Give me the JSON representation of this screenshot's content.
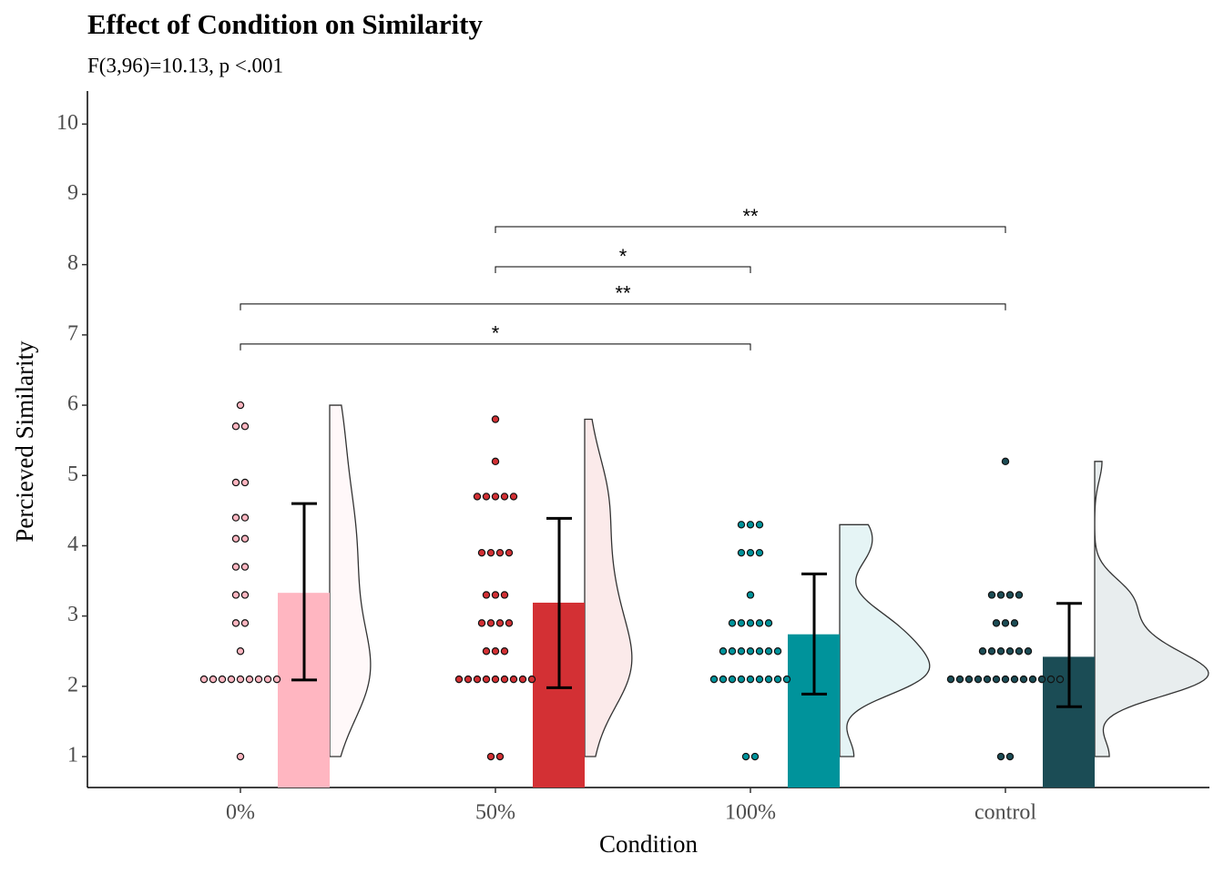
{
  "chart_data": {
    "type": "raincloud",
    "title": "Effect of Condition on Similarity",
    "subtitle": "F(3,96)=10.13, p <.001",
    "xlabel": "Condition",
    "ylabel": "Percieved Similarity",
    "categories": [
      "0%",
      "50%",
      "100%",
      "control"
    ],
    "colors": [
      "#ffb6c1",
      "#d33034",
      "#00939b",
      "#1b4c55"
    ],
    "means": [
      3.33,
      3.19,
      2.74,
      2.42
    ],
    "error_low": [
      2.09,
      1.98,
      1.89,
      1.71
    ],
    "error_high": [
      4.6,
      4.39,
      3.6,
      3.18
    ],
    "points": [
      [
        6,
        5.7,
        5.7,
        4.9,
        4.9,
        4.4,
        4.4,
        4.1,
        4.1,
        3.7,
        3.7,
        3.3,
        3.3,
        2.9,
        2.9,
        2.5,
        2.1,
        2.1,
        2.1,
        2.1,
        2.1,
        2.1,
        2.1,
        2.1,
        2.1,
        1
      ],
      [
        5.8,
        5.2,
        4.7,
        4.7,
        4.7,
        4.7,
        4.7,
        3.9,
        3.9,
        3.9,
        3.9,
        3.3,
        3.3,
        3.3,
        2.9,
        2.9,
        2.9,
        2.9,
        2.5,
        2.5,
        2.5,
        2.1,
        2.1,
        2.1,
        2.1,
        2.1,
        2.1,
        2.1,
        2.1,
        2.1,
        1,
        1
      ],
      [
        4.3,
        4.3,
        4.3,
        3.9,
        3.9,
        3.9,
        3.3,
        2.9,
        2.9,
        2.9,
        2.9,
        2.9,
        2.5,
        2.5,
        2.5,
        2.5,
        2.5,
        2.5,
        2.5,
        2.1,
        2.1,
        2.1,
        2.1,
        2.1,
        2.1,
        2.1,
        2.1,
        2.1,
        1,
        1
      ],
      [
        5.2,
        3.3,
        3.3,
        3.3,
        3.3,
        2.9,
        2.9,
        2.9,
        2.5,
        2.5,
        2.5,
        2.5,
        2.5,
        2.5,
        2.1,
        2.1,
        2.1,
        2.1,
        2.1,
        2.1,
        2.1,
        2.1,
        2.1,
        2.1,
        2.1,
        2.1,
        2.1,
        1,
        1
      ]
    ],
    "comparisons": [
      {
        "from": "0%",
        "to": "100%",
        "label": "*",
        "y": 6.87
      },
      {
        "from": "0%",
        "to": "control",
        "label": "**",
        "y": 7.44
      },
      {
        "from": "50%",
        "to": "100%",
        "label": "*",
        "y": 7.97
      },
      {
        "from": "50%",
        "to": "control",
        "label": "**",
        "y": 8.54
      }
    ],
    "ylim": [
      0.56,
      10.47
    ],
    "yticks": [
      1,
      2,
      3,
      4,
      5,
      6,
      7,
      8,
      9,
      10
    ]
  }
}
